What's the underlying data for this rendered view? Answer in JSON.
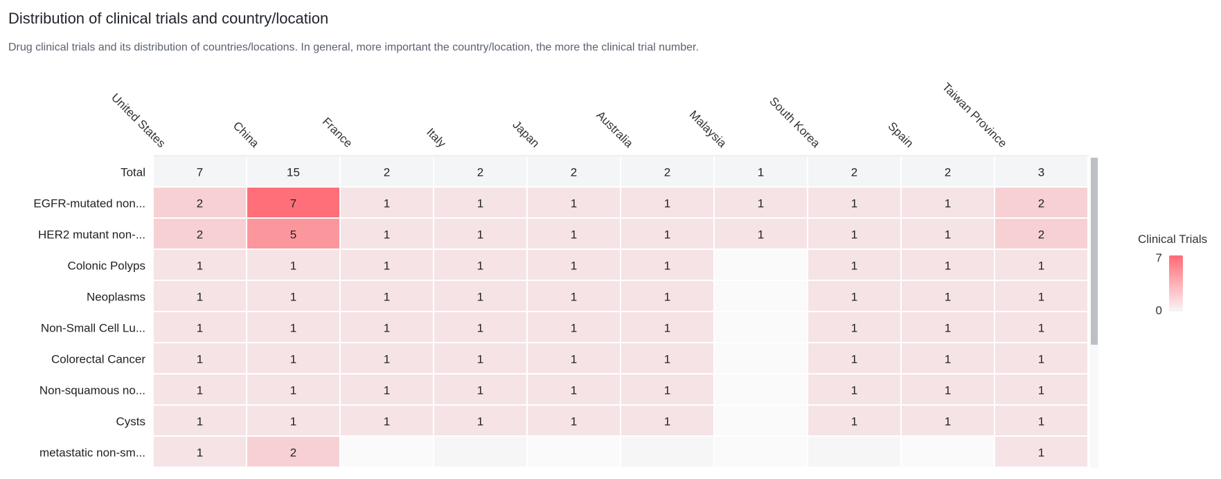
{
  "title": "Distribution of clinical trials and country/location",
  "subtitle": "Drug clinical trials and its distribution of countries/locations. In general, more important the country/location, the more the clinical trial number.",
  "colors": {
    "high": "#ff6f79",
    "low": "#f5e3e6",
    "total_bg": "#f4f5f7",
    "empty_bg": "#fafafa",
    "scrollbar": "#bcc0c6"
  },
  "chart_data": {
    "type": "heatmap",
    "columns": [
      "United States",
      "China",
      "France",
      "Italy",
      "Japan",
      "Australia",
      "Malaysia",
      "South Korea",
      "Spain",
      "Taiwan Province"
    ],
    "total": {
      "label": "Total",
      "values": [
        7,
        15,
        2,
        2,
        2,
        2,
        1,
        2,
        2,
        3
      ]
    },
    "rows": [
      {
        "label": "EGFR-mutated non...",
        "values": [
          2,
          7,
          1,
          1,
          1,
          1,
          1,
          1,
          1,
          2
        ]
      },
      {
        "label": "HER2 mutant non-...",
        "values": [
          2,
          5,
          1,
          1,
          1,
          1,
          1,
          1,
          1,
          2
        ]
      },
      {
        "label": "Colonic Polyps",
        "values": [
          1,
          1,
          1,
          1,
          1,
          1,
          null,
          1,
          1,
          1
        ]
      },
      {
        "label": "Neoplasms",
        "values": [
          1,
          1,
          1,
          1,
          1,
          1,
          null,
          1,
          1,
          1
        ]
      },
      {
        "label": "Non-Small Cell Lu...",
        "values": [
          1,
          1,
          1,
          1,
          1,
          1,
          null,
          1,
          1,
          1
        ]
      },
      {
        "label": "Colorectal Cancer",
        "values": [
          1,
          1,
          1,
          1,
          1,
          1,
          null,
          1,
          1,
          1
        ]
      },
      {
        "label": "Non-squamous no...",
        "values": [
          1,
          1,
          1,
          1,
          1,
          1,
          null,
          1,
          1,
          1
        ]
      },
      {
        "label": "Cysts",
        "values": [
          1,
          1,
          1,
          1,
          1,
          1,
          null,
          1,
          1,
          1
        ]
      },
      {
        "label": "metastatic non-sm...",
        "values": [
          1,
          2,
          null,
          null,
          null,
          null,
          null,
          null,
          null,
          1
        ]
      }
    ],
    "legend": {
      "title": "Clinical Trials",
      "max": 7,
      "min": 0
    }
  }
}
